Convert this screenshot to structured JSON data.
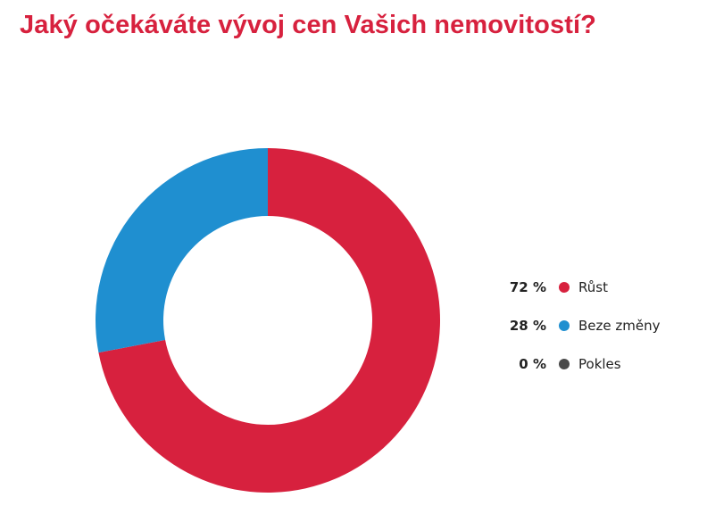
{
  "colors": {
    "title": "#d7213e"
  },
  "chart_data": {
    "type": "pie",
    "variant": "donut",
    "title": "Jaký očekáváte vývoj cen Vašich nemovitostí?",
    "unit": "%",
    "legend_position": "right",
    "slices": [
      {
        "name": "Růst",
        "value": 72,
        "label": "72 %",
        "color": "#d7213e"
      },
      {
        "name": "Beze změny",
        "value": 28,
        "label": "28 %",
        "color": "#1f8fd0"
      },
      {
        "name": "Pokles",
        "value": 0,
        "label": "0 %",
        "color": "#4a4a4a"
      }
    ]
  }
}
